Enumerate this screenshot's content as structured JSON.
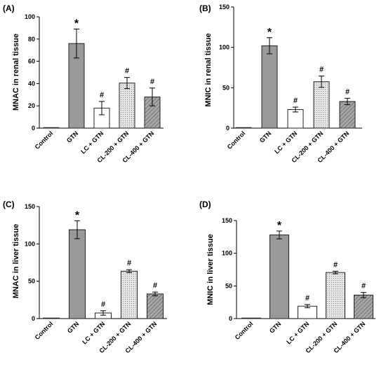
{
  "colors": {
    "gtn": "#999999",
    "stroke": "#222222",
    "cl200_fill": "#e6e6e6",
    "cl400_fill": "#a6a6a6"
  },
  "chart_data": [
    {
      "type": "bar",
      "panel": "(A)",
      "ylabel": "MNAC in renal tissue",
      "categories": [
        "Control",
        "GTN",
        "LC + GTN",
        "CL-200 + GTN",
        "CL-400 + GTN"
      ],
      "values": [
        0.5,
        76,
        18,
        40.5,
        28
      ],
      "errors": [
        0.3,
        13,
        6,
        5,
        8
      ],
      "annotations": [
        "",
        "*",
        "#",
        "#",
        "#"
      ],
      "yticks": [
        0,
        20,
        40,
        60,
        80,
        100
      ],
      "ylim": [
        0,
        100
      ]
    },
    {
      "type": "bar",
      "panel": "(B)",
      "ylabel": "MNIC in renal tissue",
      "categories": [
        "Control",
        "GTN",
        "LC + GTN",
        "CL-200 + GTN",
        "CL-400 + GTN"
      ],
      "values": [
        0.5,
        102,
        23,
        57.5,
        33
      ],
      "errors": [
        0.3,
        10,
        3,
        7,
        4
      ],
      "annotations": [
        "",
        "*",
        "#",
        "#",
        "#"
      ],
      "yticks": [
        0,
        50,
        100,
        150
      ],
      "ylim": [
        0,
        150
      ]
    },
    {
      "type": "bar",
      "panel": "(C)",
      "ylabel": "MNAC in liver tissue",
      "categories": [
        "Control",
        "GTN",
        "LC + GTN",
        "CL-200 + GTN",
        "CL-400 + GTN"
      ],
      "values": [
        0.5,
        119,
        7.5,
        63.5,
        33
      ],
      "errors": [
        0.3,
        12,
        3,
        2,
        2.5
      ],
      "annotations": [
        "",
        "*",
        "#",
        "#",
        "#"
      ],
      "yticks": [
        0,
        50,
        100,
        150
      ],
      "ylim": [
        0,
        150
      ]
    },
    {
      "type": "bar",
      "panel": "(D)",
      "ylabel": "MNIC in liver tissue",
      "categories": [
        "Control",
        "GTN",
        "LC + GTN",
        "CL-200 + GTN",
        "CL-400 + GTN"
      ],
      "values": [
        0.3,
        128,
        19,
        70.5,
        36
      ],
      "errors": [
        0.2,
        6,
        2.5,
        2,
        4
      ],
      "annotations": [
        "",
        "*",
        "#",
        "#",
        "#"
      ],
      "yticks": [
        0,
        50,
        100,
        150
      ],
      "ylim": [
        0,
        150
      ]
    }
  ]
}
